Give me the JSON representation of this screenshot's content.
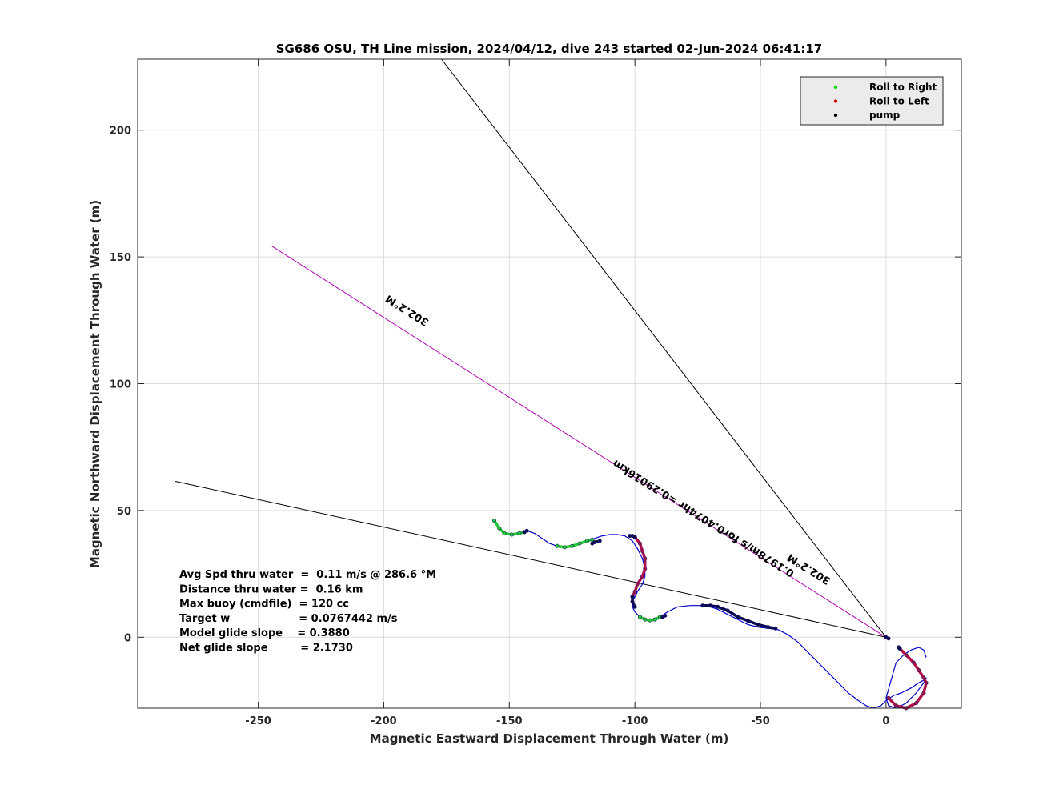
{
  "chart_data": {
    "type": "line",
    "title": "SG686 OSU, TH Line mission, 2024/04/12, dive 243 started 02-Jun-2024 06:41:17",
    "xlabel": "Magnetic Eastward Displacement Through Water (m)",
    "ylabel": "Magnetic Northward Displacement Through Water (m)",
    "xlim": [
      -298,
      30
    ],
    "ylim": [
      -28,
      228
    ],
    "xticks": [
      -250,
      -200,
      -150,
      -100,
      -50,
      0
    ],
    "yticks": [
      0,
      50,
      100,
      150,
      200
    ],
    "xtick_labels": [
      "-250",
      "-200",
      "-150",
      "-100",
      "-50",
      "0"
    ],
    "ytick_labels": [
      "0",
      "50",
      "100",
      "150",
      "200"
    ],
    "grid": true,
    "legend": {
      "placement": "top-right",
      "entries": [
        {
          "label": "Roll to Right",
          "color": "#00dd00"
        },
        {
          "label": "Roll to Left",
          "color": "#dd0000"
        },
        {
          "label": "pump",
          "color": "#000000"
        }
      ]
    },
    "reference_lines": [
      {
        "name": "heading-line-steep",
        "color": "#000000",
        "x": [
          0,
          -177
        ],
        "y": [
          0,
          228
        ]
      },
      {
        "name": "heading-line-302",
        "color": "#b000b0",
        "x": [
          0,
          -245
        ],
        "y": [
          0,
          154.5
        ]
      },
      {
        "name": "heading-line-shallow",
        "color": "#000000",
        "x": [
          0,
          -283
        ],
        "y": [
          0,
          61.5
        ]
      }
    ],
    "track": {
      "color": "#0000cc",
      "x": [
        -156,
        -154,
        -152,
        -149,
        -146,
        -143,
        -140,
        -137,
        -134,
        -131,
        -128,
        -125,
        -122,
        -119,
        -116,
        -113,
        -110,
        -107,
        -104,
        -101,
        -99,
        -97,
        -96,
        -96,
        -97,
        -99,
        -100,
        -101,
        -101,
        -100,
        -98,
        -96,
        -94,
        -92,
        -90,
        -87,
        -83,
        -78,
        -73,
        -70,
        -67,
        -63,
        -59,
        -55,
        -51,
        -47,
        -43,
        -39,
        -35,
        -31,
        -27,
        -23,
        -19,
        -15,
        -11,
        -8,
        -5,
        -2,
        0,
        3,
        6,
        10,
        13,
        15,
        16,
        15,
        12,
        8,
        4,
        1,
        0,
        4,
        7,
        10,
        13,
        15,
        16
      ],
      "y": [
        46,
        43,
        41,
        40.5,
        41,
        42,
        41,
        39,
        37,
        36,
        35.5,
        36,
        37,
        38,
        39,
        40,
        40.5,
        40.5,
        40,
        38,
        35,
        31,
        27,
        24,
        21,
        18,
        16,
        14,
        12,
        10,
        8,
        7,
        6.7,
        7,
        8,
        10,
        12,
        12.5,
        12.5,
        12,
        11,
        9,
        7,
        5,
        4,
        3.5,
        3,
        1,
        -2,
        -6,
        -10,
        -14,
        -18,
        -22,
        -25,
        -27,
        -28,
        -27,
        -25,
        -23,
        -22,
        -20,
        -18,
        -17,
        -16,
        -18,
        -22,
        -26,
        -28,
        -27,
        -24,
        -10,
        -7,
        -5,
        -4,
        -5,
        -8
      ]
    },
    "roll_right_segments": [
      {
        "x": [
          -156,
          -154,
          -152,
          -149,
          -146,
          -144
        ],
        "y": [
          46,
          43,
          41,
          40.5,
          41,
          41.5
        ]
      },
      {
        "x": [
          -131,
          -128,
          -125,
          -122,
          -119,
          -117
        ],
        "y": [
          36,
          35.5,
          36,
          37,
          38,
          38.5
        ]
      },
      {
        "x": [
          -98,
          -96,
          -94,
          -92,
          -90
        ],
        "y": [
          8,
          7,
          6.7,
          7,
          8
        ]
      }
    ],
    "roll_left_segments": [
      {
        "x": [
          -100,
          -98,
          -97,
          -96,
          -96,
          -97,
          -99,
          -100,
          -101
        ],
        "y": [
          39.5,
          37,
          34,
          31,
          27,
          24,
          21,
          18,
          16
        ]
      },
      {
        "x": [
          5,
          8,
          11,
          13,
          15,
          16,
          15,
          12,
          8,
          4,
          1
        ],
        "y": [
          -4,
          -7,
          -10,
          -13,
          -16,
          -18,
          -22,
          -26,
          -28,
          -27,
          -24
        ]
      }
    ],
    "pump_segments": [
      {
        "x": [
          -144,
          -143
        ],
        "y": [
          41.5,
          42
        ]
      },
      {
        "x": [
          -117,
          -116,
          -114
        ],
        "y": [
          37,
          37.5,
          38
        ]
      },
      {
        "x": [
          -102,
          -101,
          -100
        ],
        "y": [
          40,
          40,
          39.5
        ]
      },
      {
        "x": [
          -101,
          -101,
          -100
        ],
        "y": [
          16,
          14,
          12
        ]
      },
      {
        "x": [
          -89,
          -88
        ],
        "y": [
          8,
          8.5
        ]
      },
      {
        "x": [
          -73,
          -70,
          -67,
          -63,
          -59,
          -55,
          -51,
          -47,
          -44
        ],
        "y": [
          12.5,
          12.5,
          12,
          10.5,
          8,
          6.5,
          5,
          4,
          3.5
        ]
      },
      {
        "x": [
          0,
          1
        ],
        "y": [
          0,
          -0.5
        ]
      },
      {
        "x": [
          5,
          5.5
        ],
        "y": [
          -4,
          -4.5
        ]
      }
    ],
    "annotations": [
      {
        "text": "302.2°M",
        "x": -190,
        "y": 130,
        "angle": 212
      },
      {
        "text": "302.2°M",
        "x": -30,
        "y": 28,
        "angle": 212
      },
      {
        "text": "0.1978m/s for0.4074hr =0.29016km",
        "x": -72,
        "y": 48,
        "angle": 212
      }
    ],
    "stats": [
      "Avg Spd thru water  =  0.11 m/s @ 286.6 °M",
      "Distance thru water =  0.16 km",
      "Max buoy (cmdfile)  = 120 cc",
      "Target w                   = 0.0767442 m/s",
      "Model glide slope    = 0.3880",
      "Net glide slope         = 2.1730"
    ]
  }
}
